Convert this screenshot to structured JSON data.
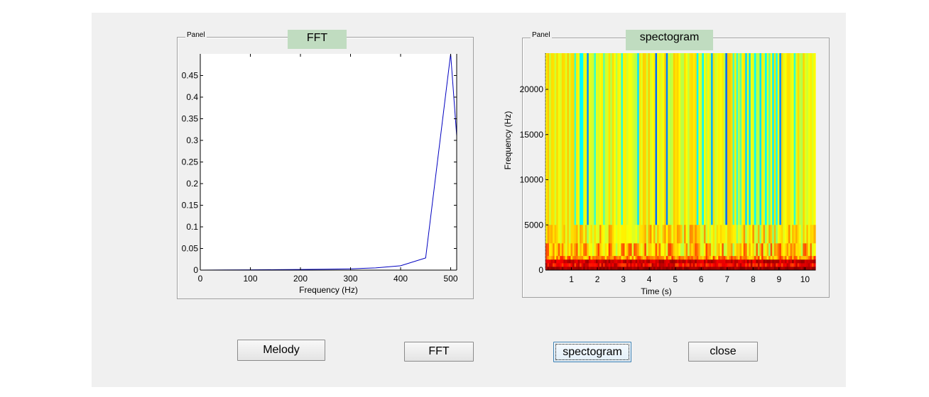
{
  "left_panel": {
    "label": "Panel",
    "title": "FFT",
    "chart_data": {
      "type": "line",
      "xlabel": "Frequency (Hz)",
      "ylabel": "",
      "xlim": [
        0,
        512
      ],
      "ylim": [
        0,
        0.5
      ],
      "x_ticks": [
        0,
        100,
        200,
        300,
        400,
        500
      ],
      "y_ticks": [
        0,
        0.05,
        0.1,
        0.15,
        0.2,
        0.25,
        0.3,
        0.35,
        0.4,
        0.45
      ],
      "x_tick_labels": [
        "0",
        "100",
        "200",
        "300",
        "400",
        "500"
      ],
      "y_tick_labels": [
        "0",
        "0.05",
        "0.1",
        "0.15",
        "0.2",
        "0.25",
        "0.3",
        "0.35",
        "0.4",
        "0.45"
      ],
      "series": [
        {
          "color": "#0000c0",
          "x": [
            0,
            50,
            100,
            150,
            200,
            250,
            300,
            350,
            400,
            450,
            500,
            512
          ],
          "y": [
            0,
            0.0003,
            0.0006,
            0.001,
            0.0015,
            0.002,
            0.003,
            0.005,
            0.01,
            0.028,
            0.5,
            0.31
          ]
        }
      ]
    }
  },
  "right_panel": {
    "label": "Panel",
    "title": "spectogram",
    "chart_data": {
      "type": "heatmap",
      "xlabel": "Time (s)",
      "ylabel": "Frequency (Hz)",
      "xlim": [
        0,
        10.4
      ],
      "ylim": [
        0,
        24000
      ],
      "x_ticks": [
        1,
        2,
        3,
        4,
        5,
        6,
        7,
        8,
        9,
        10
      ],
      "y_ticks": [
        0,
        5000,
        10000,
        15000,
        20000
      ],
      "x_tick_labels": [
        "1",
        "2",
        "3",
        "4",
        "5",
        "6",
        "7",
        "8",
        "9",
        "10"
      ],
      "y_tick_labels": [
        "0",
        "5000",
        "10000",
        "15000",
        "20000"
      ],
      "colormap": "jet",
      "colors": {
        "low": "#30d0ff",
        "mid": "#e8ff30",
        "high": "#ffb000",
        "peak": "#a00000"
      }
    }
  },
  "buttons": {
    "melody": "Melody",
    "fft": "FFT",
    "spectogram": "spectogram",
    "close": "close"
  }
}
